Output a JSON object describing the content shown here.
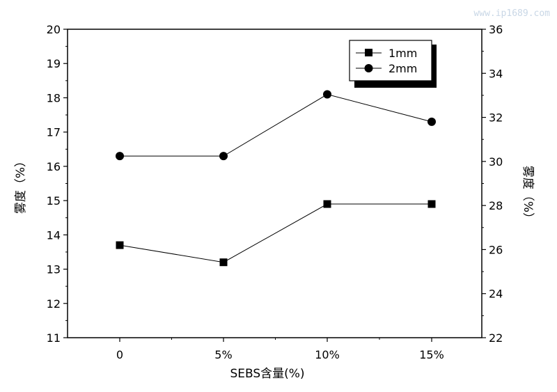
{
  "watermark": "www.ip1689.com",
  "chart_data": {
    "type": "line",
    "categories": [
      "0",
      "5%",
      "10%",
      "15%"
    ],
    "xlabel": "SEBS含量(%)",
    "ylabel_left": "雾度（%）",
    "ylabel_right": "雾度（%）",
    "left_axis": {
      "range": [
        11,
        20
      ],
      "ticks": [
        "11",
        "12",
        "13",
        "14",
        "15",
        "16",
        "17",
        "18",
        "19",
        "20"
      ]
    },
    "right_axis": {
      "range": [
        22,
        36
      ],
      "ticks": [
        "22",
        "24",
        "26",
        "28",
        "30",
        "32",
        "34",
        "36"
      ]
    },
    "series": [
      {
        "name": "1mm",
        "marker": "square",
        "axis": "left",
        "values": [
          13.7,
          13.2,
          14.9,
          14.9
        ]
      },
      {
        "name": "2mm",
        "marker": "circle",
        "axis": "left",
        "values": [
          16.3,
          16.3,
          18.1,
          17.3
        ]
      }
    ],
    "legend_position": "top-right",
    "grid": false,
    "colors": {
      "line": "#000000",
      "marker": "#000000",
      "background": "#ffffff"
    }
  }
}
